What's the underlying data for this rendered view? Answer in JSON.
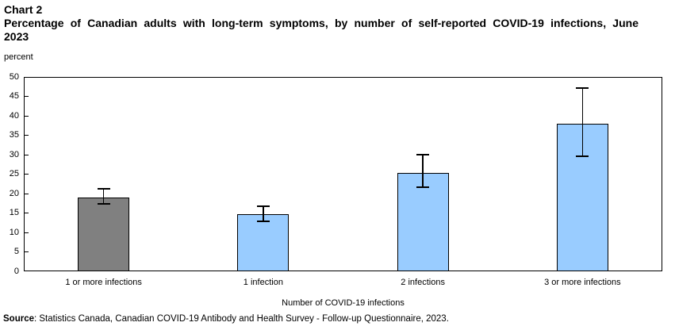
{
  "header": {
    "chart_label": "Chart 2",
    "title": "Percentage of Canadian adults with long-term symptoms, by number of self-reported COVID-19 infections, June 2023"
  },
  "chart_data": {
    "type": "bar",
    "categories": [
      "1 or more infections",
      "1 infection",
      "2 infections",
      "3 or more infections"
    ],
    "values": [
      19.0,
      14.6,
      25.4,
      37.9
    ],
    "error_low": [
      17.3,
      12.8,
      21.6,
      29.6
    ],
    "error_high": [
      21.2,
      16.7,
      30.0,
      47.1
    ],
    "bar_colors": [
      "#808080",
      "#99CCFF",
      "#99CCFF",
      "#99CCFF"
    ],
    "bar_border_color": "#000000",
    "error_bar_color": "#000000",
    "title": "Percentage of Canadian adults with long-term symptoms, by number of self-reported COVID-19 infections, June 2023",
    "xlabel": "Number of COVID-19 infections",
    "ylabel": "percent",
    "ylim": [
      0,
      50
    ],
    "ytick_step": 5,
    "grid": false,
    "legend": "none"
  },
  "footer": {
    "source_label": "Source",
    "source_text": ": Statistics Canada, Canadian COVID-19 Antibody and Health Survey - Follow-up Questionnaire, 2023."
  }
}
